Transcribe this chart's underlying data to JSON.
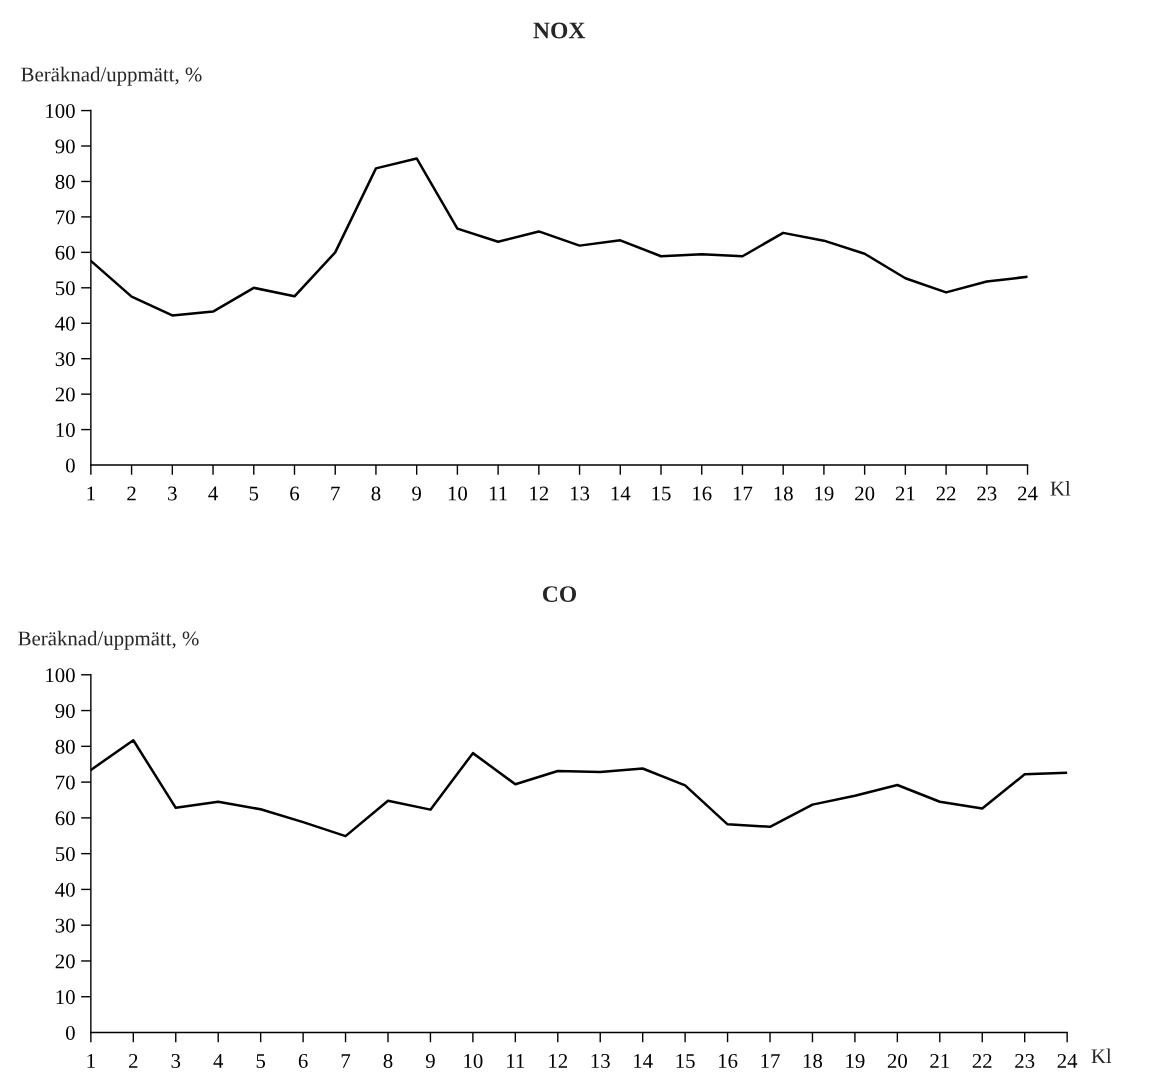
{
  "chart_data": [
    {
      "type": "line",
      "title": "NOX",
      "ylabel": "Beräknad/uppmätt, %",
      "xlabel": "Kl",
      "x": [
        1,
        2,
        3,
        4,
        5,
        6,
        7,
        8,
        9,
        10,
        11,
        12,
        13,
        14,
        15,
        16,
        17,
        18,
        19,
        20,
        21,
        22,
        23,
        24
      ],
      "series": [
        {
          "color": "#000000",
          "values": [
            57.6,
            47.5,
            42.2,
            43.3,
            50.0,
            47.6,
            60.0,
            83.7,
            86.5,
            66.7,
            63.0,
            65.9,
            61.9,
            63.4,
            58.9,
            59.5,
            58.9,
            65.5,
            63.3,
            59.6,
            52.7,
            48.7,
            51.8,
            53.1
          ]
        }
      ],
      "xlim": [
        1,
        24
      ],
      "xticks": [
        1,
        2,
        3,
        4,
        5,
        6,
        7,
        8,
        9,
        10,
        11,
        12,
        13,
        14,
        15,
        16,
        17,
        18,
        19,
        20,
        21,
        22,
        23,
        24
      ],
      "ylim": [
        0,
        100
      ],
      "yticks": [
        0,
        10,
        20,
        30,
        40,
        50,
        60,
        70,
        80,
        90,
        100
      ],
      "grid": false,
      "marker": "none",
      "line_style": "solid"
    },
    {
      "type": "line",
      "title": "CO",
      "ylabel": "Beräknad/uppmätt, %",
      "xlabel": "Kl",
      "x": [
        1,
        2,
        3,
        4,
        5,
        6,
        7,
        8,
        9,
        10,
        11,
        12,
        13,
        14,
        15,
        16,
        17,
        18,
        19,
        20,
        21,
        22,
        23,
        24
      ],
      "series": [
        {
          "color": "#000000",
          "values": [
            73.4,
            81.7,
            62.8,
            64.5,
            62.4,
            58.8,
            54.9,
            64.8,
            62.3,
            78.1,
            69.4,
            73.1,
            72.8,
            73.8,
            69.1,
            58.2,
            57.5,
            63.7,
            66.2,
            69.2,
            64.5,
            62.6,
            72.2,
            72.6
          ]
        }
      ],
      "xlim": [
        1,
        24
      ],
      "xticks": [
        1,
        2,
        3,
        4,
        5,
        6,
        7,
        8,
        9,
        10,
        11,
        12,
        13,
        14,
        15,
        16,
        17,
        18,
        19,
        20,
        21,
        22,
        23,
        24
      ],
      "ylim": [
        0,
        100
      ],
      "yticks": [
        0,
        10,
        20,
        30,
        40,
        50,
        60,
        70,
        80,
        90,
        100
      ],
      "grid": false,
      "marker": "none",
      "line_style": "solid"
    }
  ]
}
